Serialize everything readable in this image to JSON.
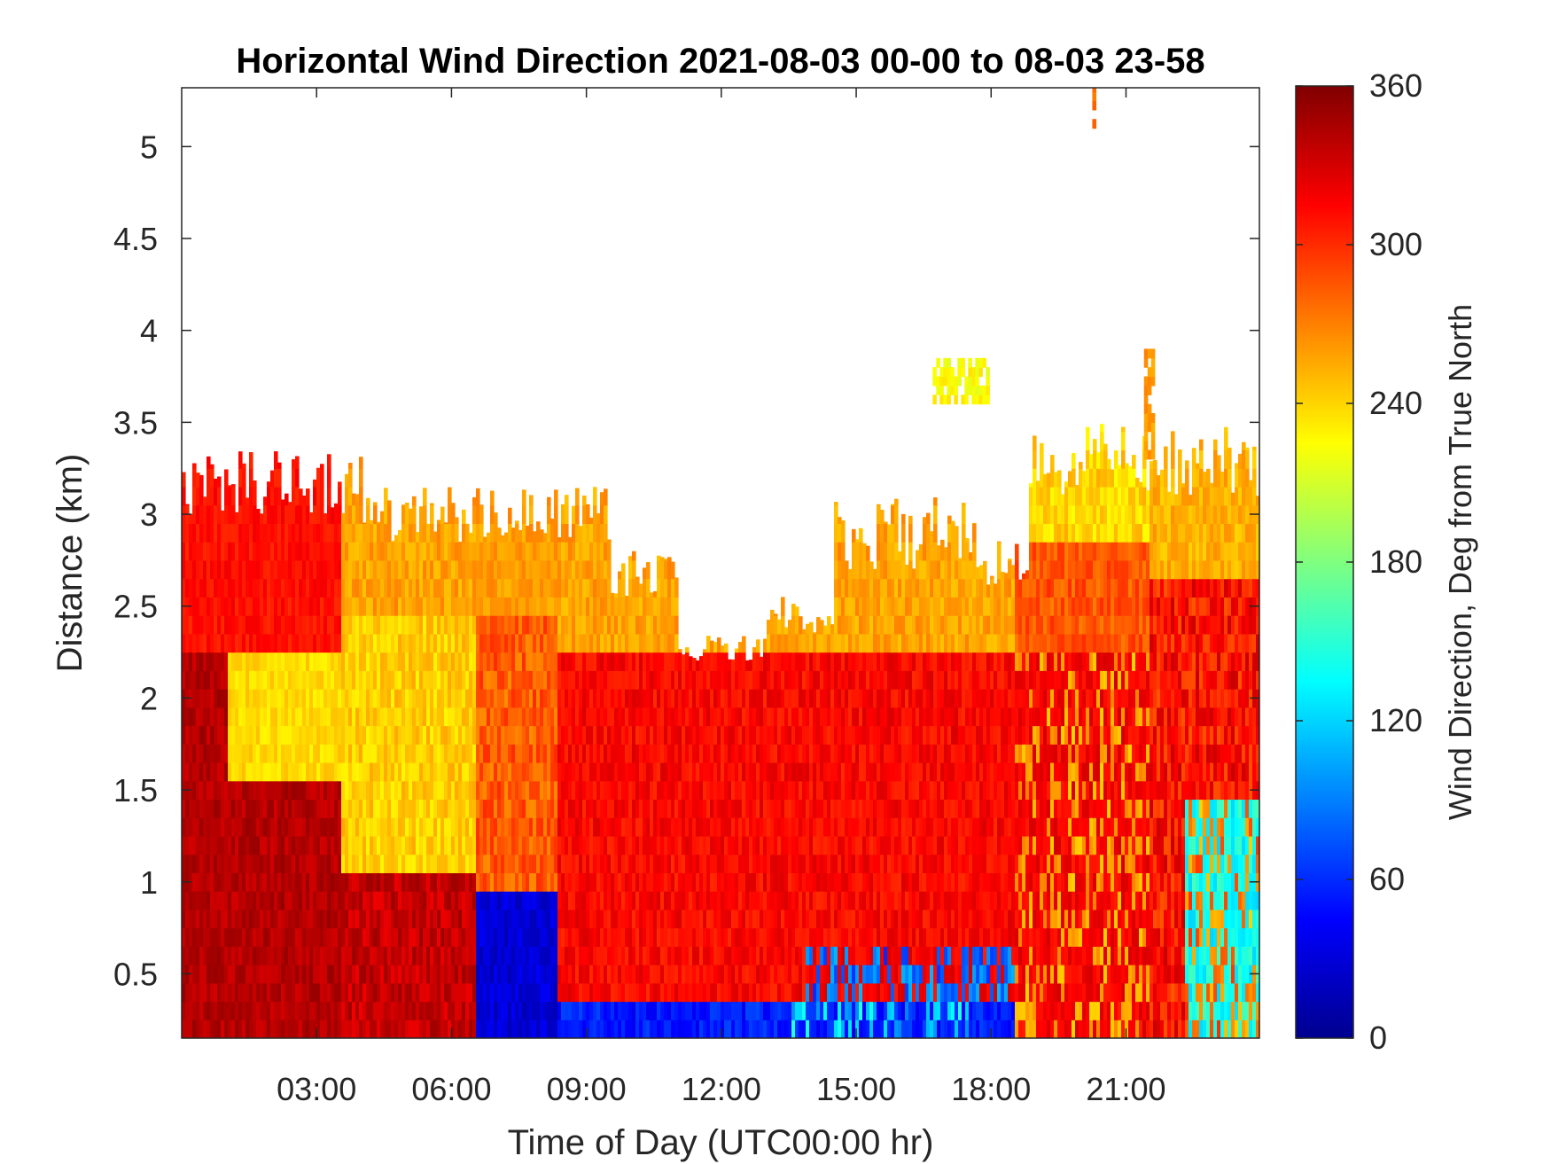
{
  "chart_data": {
    "type": "heatmap",
    "title": "Horizontal Wind Direction 2021-08-03 00-00 to 08-03 23-58",
    "xlabel": "Time of Day (UTC00:00 hr)",
    "ylabel": "Distance (km)",
    "xlim": [
      "00:00",
      "23:58"
    ],
    "ylim": [
      0.15,
      5.32
    ],
    "x_ticks": [
      "03:00",
      "06:00",
      "09:00",
      "12:00",
      "15:00",
      "18:00",
      "21:00"
    ],
    "y_ticks": [
      "0.5",
      "1",
      "1.5",
      "2",
      "2.5",
      "3",
      "3.5",
      "4",
      "4.5",
      "5"
    ],
    "colorbar": {
      "label": "Wind Direction, Deg from True North",
      "ticks": [
        "0",
        "60",
        "120",
        "180",
        "240",
        "300",
        "360"
      ],
      "range": [
        0,
        360
      ],
      "colormap": "jet"
    },
    "grid": false,
    "data_description_points": [
      {
        "time": "00:00-04:00",
        "distance_km": [
          0.15,
          2.0
        ],
        "direction_deg": 340
      },
      {
        "time": "00:00-04:00",
        "distance_km": [
          2.0,
          2.8
        ],
        "direction_deg": 300
      },
      {
        "time": "01:00-06:00",
        "distance_km": [
          1.4,
          2.3
        ],
        "direction_deg": 230
      },
      {
        "time": "06:30-08:00",
        "distance_km": [
          0.15,
          0.9
        ],
        "direction_deg": 25
      },
      {
        "time": "09:00-18:00",
        "distance_km": [
          0.15,
          0.35
        ],
        "direction_deg": 50
      },
      {
        "time": "09:00-19:00",
        "distance_km": [
          0.4,
          2.2
        ],
        "direction_deg": 305
      },
      {
        "time": "12:30-18:00",
        "distance_km": [
          2.2,
          2.6
        ],
        "direction_deg": 255
      },
      {
        "time": "19:00-24:00",
        "distance_km": [
          2.8,
          3.4
        ],
        "direction_deg": 235
      },
      {
        "time": "16:30-18:00",
        "distance_km": [
          3.6,
          3.8
        ],
        "direction_deg": 215
      },
      {
        "time": "22:00-24:00",
        "distance_km": [
          0.15,
          1.5
        ],
        "direction_deg": 140
      }
    ]
  }
}
